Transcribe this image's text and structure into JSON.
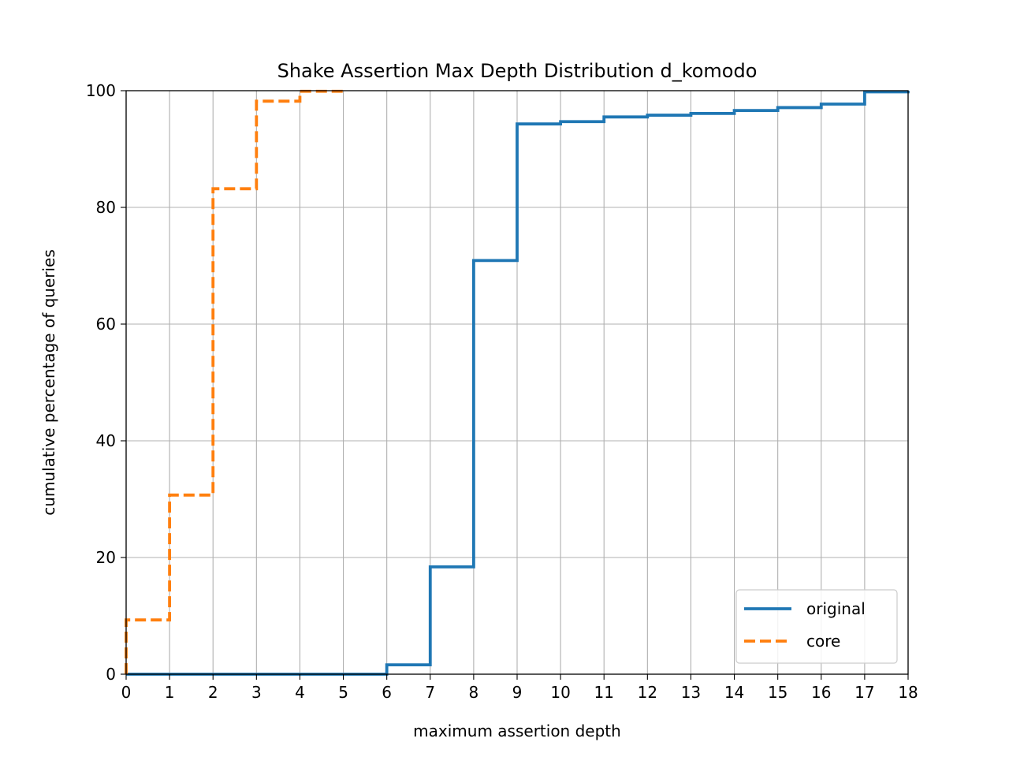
{
  "chart_data": {
    "type": "line",
    "drawstyle": "steps-post",
    "title": "Shake Assertion Max Depth Distribution d_komodo",
    "xlabel": "maximum assertion depth",
    "ylabel": "cumulative percentage of queries",
    "xlim": [
      0,
      18
    ],
    "ylim": [
      0,
      100
    ],
    "x_ticks": [
      0,
      1,
      2,
      3,
      4,
      5,
      6,
      7,
      8,
      9,
      10,
      11,
      12,
      13,
      14,
      15,
      16,
      17,
      18
    ],
    "y_ticks": [
      0,
      20,
      40,
      60,
      80,
      100
    ],
    "grid": true,
    "legend_position": "lower right",
    "series": [
      {
        "name": "original",
        "color": "#1f77b4",
        "linestyle": "solid",
        "x": [
          0,
          1,
          2,
          3,
          4,
          5,
          6,
          7,
          8,
          9,
          10,
          11,
          12,
          13,
          14,
          15,
          16,
          17,
          18
        ],
        "y": [
          0,
          0,
          0,
          0,
          0,
          0,
          1.6,
          18.4,
          70.9,
          94.3,
          94.7,
          95.5,
          95.8,
          96.1,
          96.6,
          97.1,
          97.7,
          99.8,
          100
        ]
      },
      {
        "name": "core",
        "color": "#ff7f0e",
        "linestyle": "dashed",
        "x": [
          0,
          0,
          1,
          2,
          3,
          4,
          5
        ],
        "y": [
          0,
          9.3,
          30.7,
          83.2,
          98.2,
          99.9,
          100
        ]
      }
    ]
  }
}
